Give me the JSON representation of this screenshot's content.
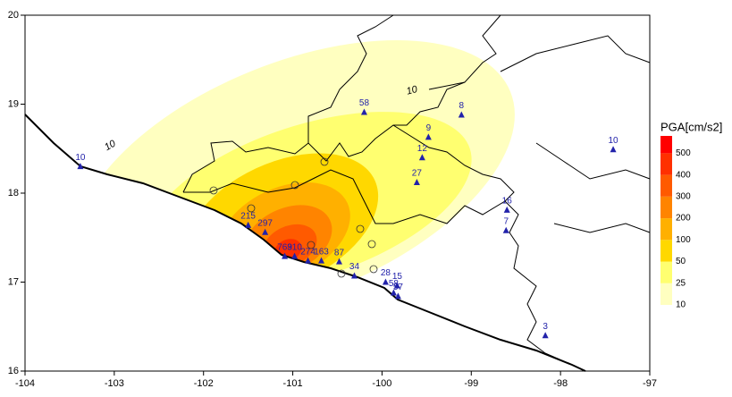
{
  "chart_data": {
    "type": "map",
    "xlim": [
      -104,
      -97
    ],
    "ylim": [
      16,
      20
    ],
    "xticks": [
      -104,
      -103,
      -102,
      -101,
      -100,
      -99,
      -98,
      -97
    ],
    "yticks": [
      16,
      17,
      18,
      19,
      20
    ],
    "contour_labels": [
      10,
      10
    ],
    "colorbar": {
      "title": "PGA[cm/s2]",
      "levels": [
        10,
        25,
        50,
        100,
        200,
        300,
        400,
        500
      ],
      "colors": [
        "#ffffc0",
        "#ffff70",
        "#ffd800",
        "#ffb000",
        "#ff8400",
        "#ff5a00",
        "#ff3000",
        "#ff0000"
      ]
    },
    "stations": [
      {
        "lon": -103.38,
        "lat": 18.3,
        "pga": 10
      },
      {
        "lon": -100.2,
        "lat": 18.91,
        "pga": 58
      },
      {
        "lon": -99.11,
        "lat": 18.88,
        "pga": 8
      },
      {
        "lon": -97.41,
        "lat": 18.49,
        "pga": 10
      },
      {
        "lon": -99.48,
        "lat": 18.63,
        "pga": 9
      },
      {
        "lon": -99.55,
        "lat": 18.4,
        "pga": 12
      },
      {
        "lon": -99.61,
        "lat": 18.12,
        "pga": 27
      },
      {
        "lon": -98.6,
        "lat": 17.81,
        "pga": 16
      },
      {
        "lon": -98.61,
        "lat": 17.58,
        "pga": 7
      },
      {
        "lon": -98.17,
        "lat": 16.4,
        "pga": 3
      },
      {
        "lon": -101.5,
        "lat": 17.64,
        "pga": 215
      },
      {
        "lon": -101.31,
        "lat": 17.56,
        "pga": 297
      },
      {
        "lon": -101.09,
        "lat": 17.29,
        "pga": 769
      },
      {
        "lon": -100.98,
        "lat": 17.29,
        "pga": 310
      },
      {
        "lon": -100.83,
        "lat": 17.24,
        "pga": 274
      },
      {
        "lon": -100.68,
        "lat": 17.24,
        "pga": 163
      },
      {
        "lon": -100.48,
        "lat": 17.23,
        "pga": 87
      },
      {
        "lon": -100.31,
        "lat": 17.07,
        "pga": 34
      },
      {
        "lon": -99.96,
        "lat": 17.0,
        "pga": 28
      },
      {
        "lon": -99.87,
        "lat": 16.88,
        "pga": 58
      },
      {
        "lon": -99.83,
        "lat": 16.96,
        "pga": 15
      },
      {
        "lon": -99.82,
        "lat": 16.84,
        "pga": 57
      }
    ]
  }
}
